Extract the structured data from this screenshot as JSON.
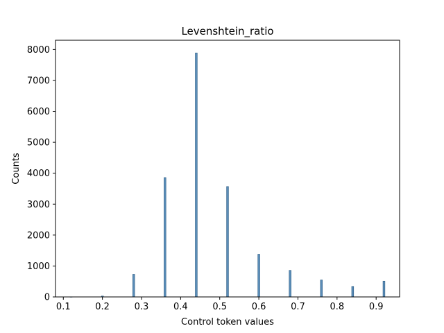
{
  "chart_data": {
    "type": "bar",
    "title": "Levenshtein_ratio",
    "xlabel": "Control token values",
    "ylabel": "Counts",
    "xlim": [
      0.08,
      0.96
    ],
    "ylim": [
      0,
      8300
    ],
    "x_ticks": [
      0.1,
      0.2,
      0.3,
      0.4,
      0.5,
      0.6,
      0.7,
      0.8,
      0.9
    ],
    "x_tick_labels": [
      "0.1",
      "0.2",
      "0.3",
      "0.4",
      "0.5",
      "0.6",
      "0.7",
      "0.8",
      "0.9"
    ],
    "y_ticks": [
      0,
      1000,
      2000,
      3000,
      4000,
      5000,
      6000,
      7000,
      8000
    ],
    "y_tick_labels": [
      "0",
      "1000",
      "2000",
      "3000",
      "4000",
      "5000",
      "6000",
      "7000",
      "8000"
    ],
    "bin_width": 0.005,
    "bars": [
      {
        "x": 0.12,
        "value": 5
      },
      {
        "x": 0.2,
        "value": 30
      },
      {
        "x": 0.28,
        "value": 730
      },
      {
        "x": 0.36,
        "value": 3860
      },
      {
        "x": 0.44,
        "value": 7890
      },
      {
        "x": 0.52,
        "value": 3570
      },
      {
        "x": 0.6,
        "value": 1380
      },
      {
        "x": 0.68,
        "value": 860
      },
      {
        "x": 0.76,
        "value": 550
      },
      {
        "x": 0.84,
        "value": 340
      },
      {
        "x": 0.92,
        "value": 510
      }
    ],
    "grid": false,
    "legend": "none",
    "colors": {
      "bar_fill": "#5b8db8",
      "bar_edge": "#2f5f86",
      "axis": "#000000"
    }
  }
}
